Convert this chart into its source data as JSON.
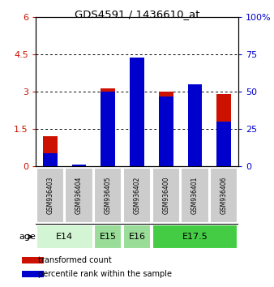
{
  "title": "GDS4591 / 1436610_at",
  "samples": [
    "GSM936403",
    "GSM936404",
    "GSM936405",
    "GSM936402",
    "GSM936400",
    "GSM936401",
    "GSM936406"
  ],
  "red_values": [
    1.22,
    0.0,
    3.15,
    4.38,
    3.02,
    3.22,
    2.92
  ],
  "blue_pct": [
    9,
    1.5,
    50,
    73,
    47,
    55,
    30
  ],
  "ylim_left": [
    0,
    6
  ],
  "ylim_right": [
    0,
    100
  ],
  "yticks_left": [
    0,
    1.5,
    3,
    4.5,
    6
  ],
  "yticks_right": [
    0,
    25,
    50,
    75,
    100
  ],
  "yticklabels_left": [
    "0",
    "1.5",
    "3",
    "4.5",
    "6"
  ],
  "yticklabels_right": [
    "0",
    "25",
    "50",
    "75",
    "100%"
  ],
  "age_groups": [
    {
      "label": "E14",
      "indices": [
        0,
        1
      ],
      "color": "#d4f5d4"
    },
    {
      "label": "E15",
      "indices": [
        2
      ],
      "color": "#99dd99"
    },
    {
      "label": "E16",
      "indices": [
        3
      ],
      "color": "#99dd99"
    },
    {
      "label": "E17.5",
      "indices": [
        4,
        5,
        6
      ],
      "color": "#44cc44"
    }
  ],
  "bar_color_red": "#cc1100",
  "bar_color_blue": "#0000cc",
  "sample_box_color": "#cccccc",
  "legend_red": "transformed count",
  "legend_blue": "percentile rank within the sample",
  "bar_width": 0.5,
  "dotted_lines": [
    1.5,
    3.0,
    4.5
  ]
}
